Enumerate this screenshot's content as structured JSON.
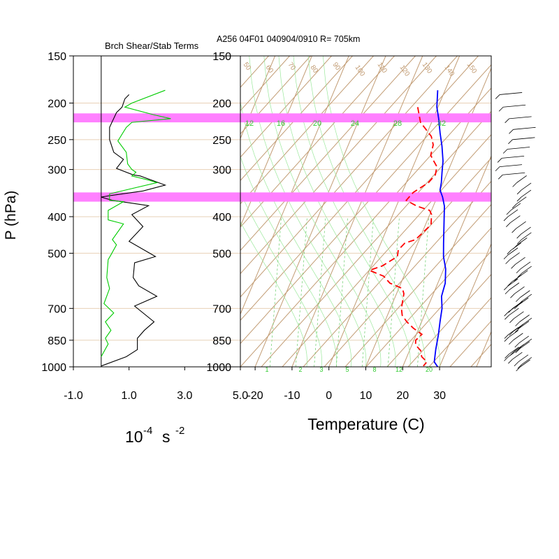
{
  "figure": {
    "header": "A256 04F01 040904/0910 R= 705km",
    "y_axis_label": "P (hPa)",
    "units_text": {
      "base": "10",
      "exp1": "-4",
      "mid": "s",
      "exp2": "-2"
    },
    "highlight_color": "#ff80ff"
  },
  "chart_data": [
    {
      "type": "line",
      "title": "Brch Shear/Stab Terms",
      "xlabel": "10-4 s -2",
      "ylabel": "P (hPa)",
      "y_scale": "log",
      "ylim": [
        1000,
        150
      ],
      "xlim": [
        -1.0,
        5.0
      ],
      "x_tick_labels": [
        "-1.0",
        "1.0",
        "3.0",
        "5.0"
      ],
      "x_ticks": [
        -1.0,
        1.0,
        3.0,
        5.0
      ],
      "pressure_ticks": [
        150,
        200,
        250,
        300,
        400,
        500,
        700,
        850,
        1000
      ],
      "highlight_layers_hPa": [
        [
          213,
          225
        ],
        [
          345,
          365
        ]
      ],
      "series": [
        {
          "color": "#000000",
          "points": [
            [
              1.0,
              190
            ],
            [
              0.85,
              195
            ],
            [
              0.75,
              205
            ],
            [
              0.55,
              212
            ],
            [
              0.3,
              232
            ],
            [
              0.3,
              250
            ],
            [
              0.45,
              270
            ],
            [
              0.8,
              282
            ],
            [
              0.55,
              298
            ],
            [
              1.15,
              310
            ],
            [
              1.4,
              312
            ],
            [
              2.3,
              330
            ],
            [
              1.5,
              342
            ],
            [
              0.3,
              352
            ],
            [
              0.0,
              355
            ],
            [
              0.4,
              362
            ],
            [
              1.7,
              374
            ],
            [
              1.1,
              395
            ],
            [
              1.5,
              425
            ],
            [
              1.0,
              465
            ],
            [
              1.95,
              510
            ],
            [
              1.2,
              530
            ],
            [
              1.15,
              580
            ],
            [
              1.35,
              610
            ],
            [
              2.0,
              650
            ],
            [
              1.2,
              690
            ],
            [
              1.9,
              760
            ],
            [
              1.55,
              800
            ],
            [
              1.3,
              840
            ],
            [
              1.3,
              900
            ],
            [
              0.9,
              940
            ],
            [
              0.0,
              995
            ]
          ]
        },
        {
          "color": "#00cc00",
          "points": [
            [
              2.3,
              185
            ],
            [
              1.1,
              200
            ],
            [
              0.85,
              205
            ],
            [
              1.9,
              215
            ],
            [
              2.5,
              220
            ],
            [
              1.1,
              225
            ],
            [
              0.9,
              232
            ],
            [
              0.6,
              252
            ],
            [
              0.9,
              270
            ],
            [
              0.95,
              290
            ],
            [
              1.1,
              300
            ],
            [
              1.25,
              305
            ],
            [
              1.1,
              312
            ],
            [
              1.7,
              320
            ],
            [
              2.0,
              325
            ],
            [
              0.3,
              348
            ],
            [
              0.3,
              362
            ],
            [
              0.8,
              365
            ],
            [
              0.25,
              385
            ],
            [
              0.25,
              408
            ],
            [
              0.8,
              418
            ],
            [
              0.4,
              460
            ],
            [
              0.55,
              475
            ],
            [
              0.35,
              505
            ],
            [
              0.25,
              520
            ],
            [
              0.2,
              580
            ],
            [
              0.3,
              620
            ],
            [
              0.1,
              680
            ],
            [
              0.45,
              720
            ],
            [
              0.15,
              760
            ],
            [
              0.35,
              800
            ],
            [
              0.15,
              840
            ],
            [
              0.25,
              870
            ],
            [
              0.0,
              940
            ]
          ]
        }
      ]
    },
    {
      "type": "line",
      "title": "",
      "xlabel": "Temperature (C)",
      "ylabel": "P (hPa)",
      "y_scale": "log",
      "ylim": [
        1000,
        150
      ],
      "xlim": [
        -24,
        44
      ],
      "x_tick_labels": [
        "-20",
        "-10",
        "0",
        "10",
        "20",
        "30"
      ],
      "x_ticks": [
        -20,
        -10,
        0,
        10,
        20,
        30
      ],
      "pressure_ticks": [
        150,
        200,
        250,
        300,
        400,
        500,
        700,
        850,
        1000
      ],
      "highlight_layers_hPa": [
        [
          213,
          225
        ],
        [
          345,
          365
        ]
      ],
      "mixing_ratio_labels_top": [
        "12",
        "16",
        "20",
        "24",
        "28",
        "32"
      ],
      "mixing_ratio_labels_bottom": [
        "1",
        "2",
        "3",
        "5",
        "8",
        "12",
        "20"
      ],
      "dry_adiabat_labels": [
        "50",
        "60",
        "70",
        "80",
        "90",
        "100",
        "110",
        "120",
        "130",
        "140",
        "150"
      ],
      "series": [
        {
          "role": "temperature",
          "color": "#0000ff",
          "points": [
            [
              -2.0,
              185
            ],
            [
              -0.3,
              205
            ],
            [
              1.5,
              220
            ],
            [
              3.5,
              240
            ],
            [
              5.5,
              260
            ],
            [
              7.5,
              285
            ],
            [
              8.5,
              305
            ],
            [
              9.5,
              325
            ],
            [
              10.0,
              340
            ],
            [
              11.5,
              355
            ],
            [
              13.0,
              375
            ],
            [
              15.0,
              420
            ],
            [
              17.0,
              470
            ],
            [
              18.5,
              510
            ],
            [
              20.5,
              550
            ],
            [
              22.0,
              600
            ],
            [
              22.5,
              650
            ],
            [
              24.0,
              700
            ],
            [
              25.0,
              760
            ],
            [
              26.0,
              820
            ],
            [
              27.0,
              900
            ],
            [
              28.0,
              970
            ],
            [
              29.5,
              1000
            ]
          ]
        },
        {
          "role": "dewpoint",
          "color": "#ff0000",
          "dashed": true,
          "points": [
            [
              -5.5,
              205
            ],
            [
              -3.0,
              225
            ],
            [
              1.5,
              245
            ],
            [
              3.0,
              258
            ],
            [
              3.5,
              275
            ],
            [
              5.0,
              285
            ],
            [
              6.5,
              295
            ],
            [
              7.0,
              310
            ],
            [
              6.0,
              325
            ],
            [
              3.0,
              345
            ],
            [
              2.0,
              362
            ],
            [
              5.5,
              375
            ],
            [
              9.5,
              385
            ],
            [
              10.5,
              395
            ],
            [
              11.5,
              420
            ],
            [
              9.0,
              460
            ],
            [
              6.5,
              470
            ],
            [
              5.5,
              490
            ],
            [
              6.0,
              510
            ],
            [
              3.0,
              540
            ],
            [
              0.0,
              555
            ],
            [
              4.5,
              575
            ],
            [
              7.0,
              600
            ],
            [
              11.0,
              620
            ],
            [
              12.0,
              640
            ],
            [
              13.0,
              700
            ],
            [
              14.0,
              730
            ],
            [
              16.0,
              760
            ],
            [
              18.5,
              790
            ],
            [
              21.5,
              820
            ],
            [
              20.5,
              850
            ],
            [
              21.0,
              875
            ],
            [
              23.0,
              905
            ],
            [
              24.0,
              940
            ],
            [
              26.0,
              970
            ],
            [
              25.5,
              995
            ]
          ]
        }
      ]
    }
  ]
}
